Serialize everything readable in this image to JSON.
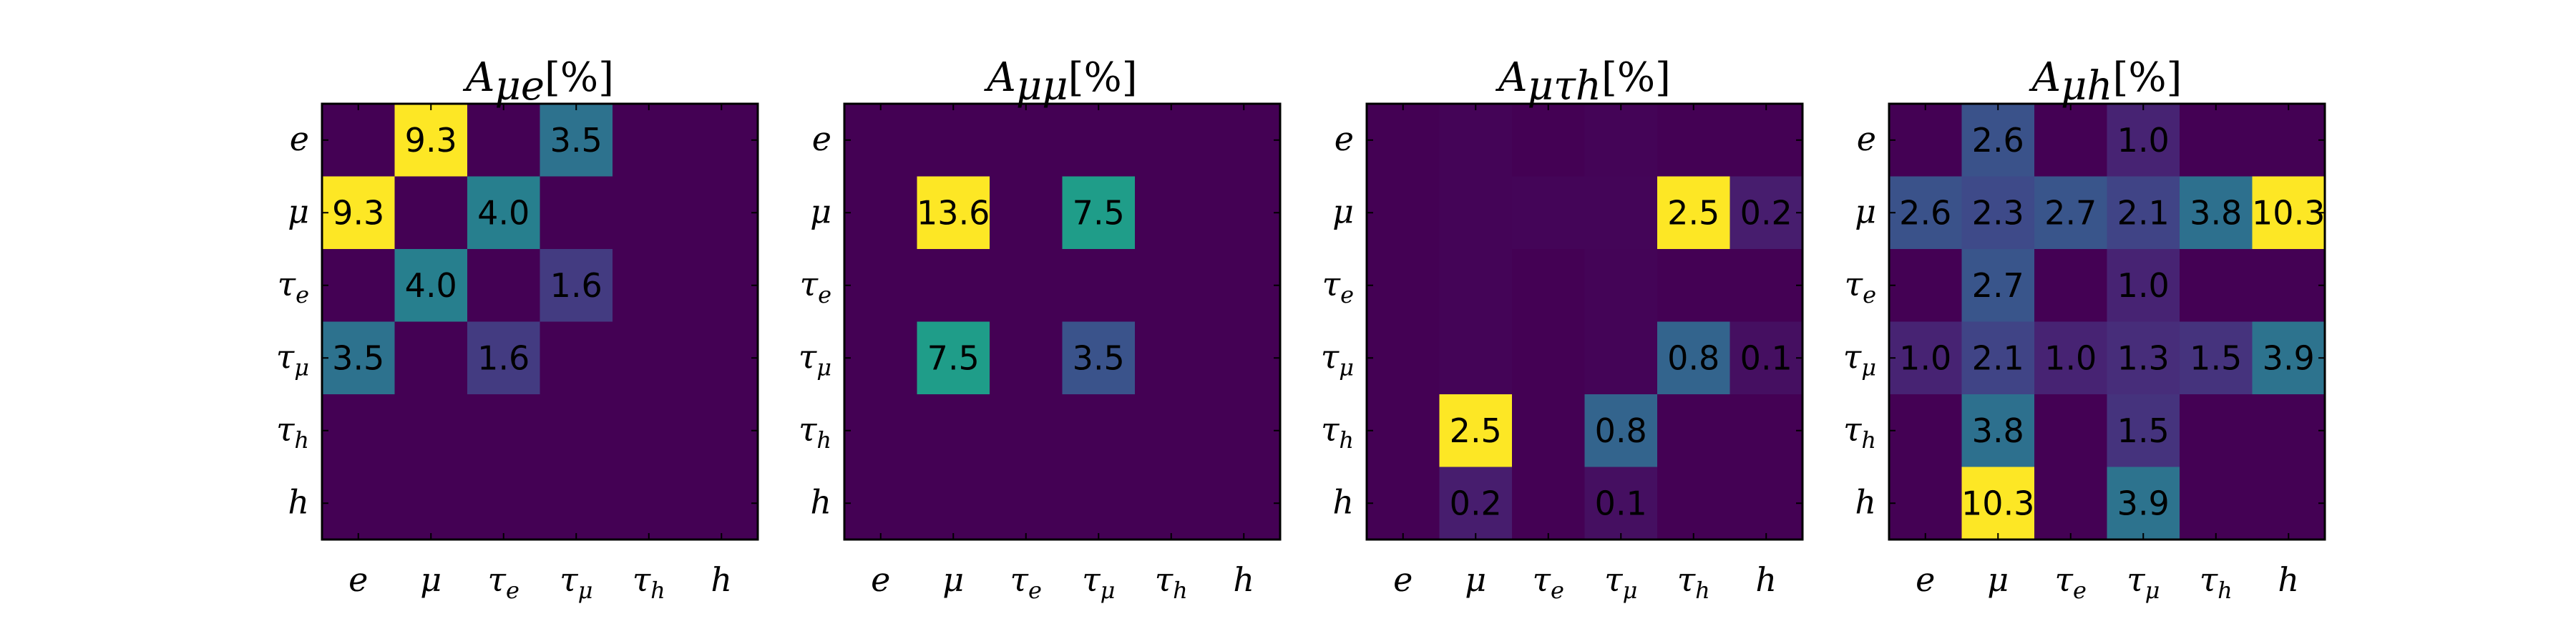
{
  "chart_data": [
    {
      "type": "heatmap",
      "title": "A_{μe}[%]",
      "title_parts": {
        "base": "A",
        "sub": "μe",
        "suffix": "[%]"
      },
      "x": [
        "e",
        "μ",
        "τe",
        "τμ",
        "τh",
        "h"
      ],
      "y": [
        "e",
        "μ",
        "τe",
        "τμ",
        "τh",
        "h"
      ],
      "values": [
        [
          0,
          9.3,
          0,
          3.5,
          0,
          0
        ],
        [
          9.3,
          0,
          4.0,
          0,
          0,
          0
        ],
        [
          0,
          4.0,
          0,
          1.6,
          0,
          0
        ],
        [
          3.5,
          0,
          1.6,
          0,
          0,
          0
        ],
        [
          0,
          0,
          0,
          0,
          0,
          0
        ],
        [
          0,
          0,
          0,
          0,
          0,
          0
        ]
      ],
      "labels": [
        [
          "",
          "9.3",
          "",
          "3.5",
          "",
          ""
        ],
        [
          "9.3",
          "",
          "4.0",
          "",
          "",
          ""
        ],
        [
          "",
          "4.0",
          "",
          "1.6",
          "",
          ""
        ],
        [
          "3.5",
          "",
          "1.6",
          "",
          "",
          ""
        ],
        [
          "",
          "",
          "",
          "",
          "",
          ""
        ],
        [
          "",
          "",
          "",
          "",
          "",
          ""
        ]
      ],
      "colormap": "viridis"
    },
    {
      "type": "heatmap",
      "title": "A_{μμ}[%]",
      "title_parts": {
        "base": "A",
        "sub": "μμ",
        "suffix": "[%]"
      },
      "x": [
        "e",
        "μ",
        "τe",
        "τμ",
        "τh",
        "h"
      ],
      "y": [
        "e",
        "μ",
        "τe",
        "τμ",
        "τh",
        "h"
      ],
      "values": [
        [
          0,
          0,
          0,
          0,
          0,
          0
        ],
        [
          0,
          13.6,
          0,
          7.5,
          0,
          0
        ],
        [
          0,
          0,
          0,
          0,
          0,
          0
        ],
        [
          0,
          7.5,
          0,
          3.5,
          0,
          0
        ],
        [
          0,
          0,
          0,
          0,
          0,
          0
        ],
        [
          0,
          0,
          0,
          0,
          0,
          0
        ]
      ],
      "labels": [
        [
          "",
          "",
          "",
          "",
          "",
          ""
        ],
        [
          "",
          "13.6",
          "",
          "7.5",
          "",
          ""
        ],
        [
          "",
          "",
          "",
          "",
          "",
          ""
        ],
        [
          "",
          "7.5",
          "",
          "3.5",
          "",
          ""
        ],
        [
          "",
          "",
          "",
          "",
          "",
          ""
        ],
        [
          "",
          "",
          "",
          "",
          "",
          ""
        ]
      ],
      "colormap": "viridis"
    },
    {
      "type": "heatmap",
      "title": "A_{μτh}[%]",
      "title_parts": {
        "base": "A",
        "sub": "μτh",
        "suffix": "[%]"
      },
      "x": [
        "e",
        "μ",
        "τe",
        "τμ",
        "τh",
        "h"
      ],
      "y": [
        "e",
        "μ",
        "τe",
        "τμ",
        "τh",
        "h"
      ],
      "values": [
        [
          0,
          0.02,
          0,
          0.02,
          0,
          0
        ],
        [
          0,
          0.02,
          0.03,
          0.03,
          2.5,
          0.2
        ],
        [
          0,
          0.02,
          0,
          0.02,
          0,
          0
        ],
        [
          0,
          0.02,
          0,
          0.02,
          0.8,
          0.1
        ],
        [
          0,
          2.5,
          0,
          0.8,
          0,
          0
        ],
        [
          0,
          0.2,
          0,
          0.1,
          0,
          0
        ]
      ],
      "labels": [
        [
          "",
          "",
          "",
          "",
          "",
          ""
        ],
        [
          "",
          "",
          "",
          "",
          "2.5",
          "0.2"
        ],
        [
          "",
          "",
          "",
          "",
          "",
          ""
        ],
        [
          "",
          "",
          "",
          "",
          "0.8",
          "0.1"
        ],
        [
          "",
          "2.5",
          "",
          "0.8",
          "",
          ""
        ],
        [
          "",
          "0.2",
          "",
          "0.1",
          "",
          ""
        ]
      ],
      "colormap": "viridis"
    },
    {
      "type": "heatmap",
      "title": "A_{μh}[%]",
      "title_parts": {
        "base": "A",
        "sub": "μh",
        "suffix": "[%]"
      },
      "x": [
        "e",
        "μ",
        "τe",
        "τμ",
        "τh",
        "h"
      ],
      "y": [
        "e",
        "μ",
        "τe",
        "τμ",
        "τh",
        "h"
      ],
      "values": [
        [
          0,
          2.6,
          0,
          1.0,
          0,
          0
        ],
        [
          2.6,
          2.3,
          2.7,
          2.1,
          3.8,
          10.3
        ],
        [
          0,
          2.7,
          0,
          1.0,
          0,
          0
        ],
        [
          1.0,
          2.1,
          1.0,
          1.3,
          1.5,
          3.9
        ],
        [
          0,
          3.8,
          0,
          1.5,
          0,
          0
        ],
        [
          0,
          10.3,
          0,
          3.9,
          0,
          0
        ]
      ],
      "labels": [
        [
          "",
          "2.6",
          "",
          "1.0",
          "",
          ""
        ],
        [
          "2.6",
          "2.3",
          "2.7",
          "2.1",
          "3.8",
          "10.3"
        ],
        [
          "",
          "2.7",
          "",
          "1.0",
          "",
          ""
        ],
        [
          "1.0",
          "2.1",
          "1.0",
          "1.3",
          "1.5",
          "3.9"
        ],
        [
          "",
          "3.8",
          "",
          "1.5",
          "",
          ""
        ],
        [
          "",
          "10.3",
          "",
          "3.9",
          "",
          ""
        ]
      ],
      "colormap": "viridis"
    }
  ]
}
